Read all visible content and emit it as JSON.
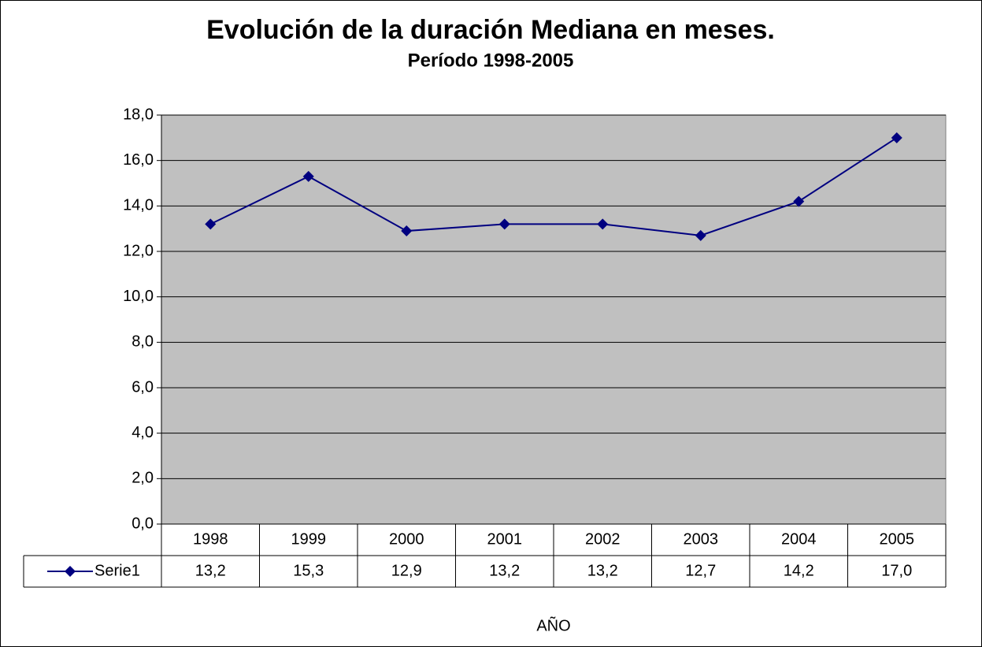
{
  "chart_data": {
    "type": "line",
    "title": "Evolución de la duración Mediana en meses.",
    "subtitle": "Período 1998-2005",
    "x_label": "AÑO",
    "categories": [
      "1998",
      "1999",
      "2000",
      "2001",
      "2002",
      "2003",
      "2004",
      "2005"
    ],
    "series": [
      {
        "name": "Serie1",
        "color": "#000080",
        "values": [
          13.2,
          15.3,
          12.9,
          13.2,
          13.2,
          12.7,
          14.2,
          17.0
        ],
        "value_labels": [
          "13,2",
          "15,3",
          "12,9",
          "13,2",
          "13,2",
          "12,7",
          "14,2",
          "17,0"
        ]
      }
    ],
    "ylim": [
      0,
      18
    ],
    "yticks": [
      {
        "value": 0,
        "label": "0,0"
      },
      {
        "value": 2,
        "label": "2,0"
      },
      {
        "value": 4,
        "label": "4,0"
      },
      {
        "value": 6,
        "label": "6,0"
      },
      {
        "value": 8,
        "label": "8,0"
      },
      {
        "value": 10,
        "label": "10,0"
      },
      {
        "value": 12,
        "label": "12,0"
      },
      {
        "value": 14,
        "label": "14,0"
      },
      {
        "value": 16,
        "label": "16,0"
      },
      {
        "value": 18,
        "label": "18,0"
      }
    ],
    "grid": true,
    "plot_background": "#c0c0c0"
  }
}
